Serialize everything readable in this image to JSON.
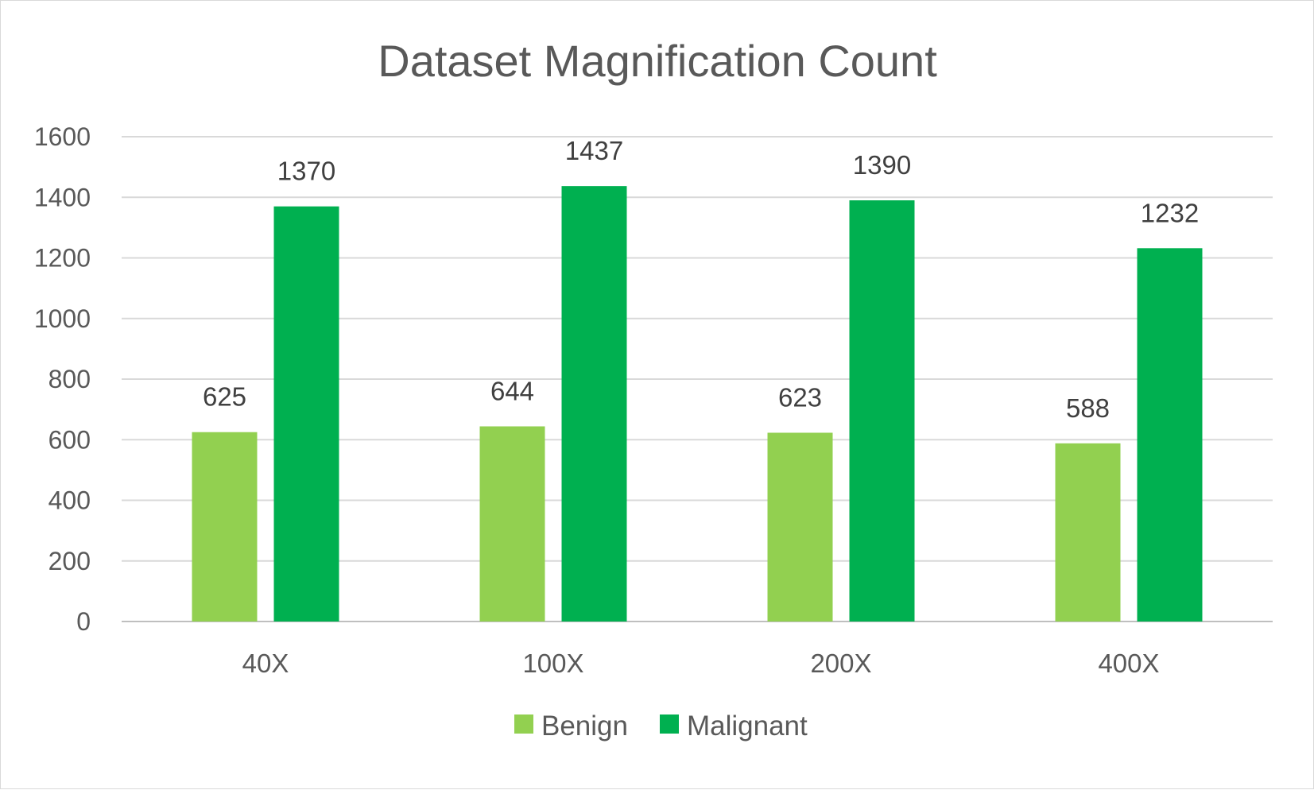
{
  "chart_data": {
    "type": "bar",
    "title": "Dataset Magnification Count",
    "xlabel": "",
    "ylabel": "",
    "categories": [
      "40X",
      "100X",
      "200X",
      "400X"
    ],
    "series": [
      {
        "name": "Benign",
        "values": [
          625,
          644,
          623,
          588
        ],
        "color": "#92d050"
      },
      {
        "name": "Malignant",
        "values": [
          1370,
          1437,
          1390,
          1232
        ],
        "color": "#00b050"
      }
    ],
    "ylim": [
      0,
      1600
    ],
    "y_ticks": [
      0,
      200,
      400,
      600,
      800,
      1000,
      1200,
      1400,
      1600
    ],
    "grid": true,
    "legend_position": "bottom",
    "data_labels": true
  }
}
